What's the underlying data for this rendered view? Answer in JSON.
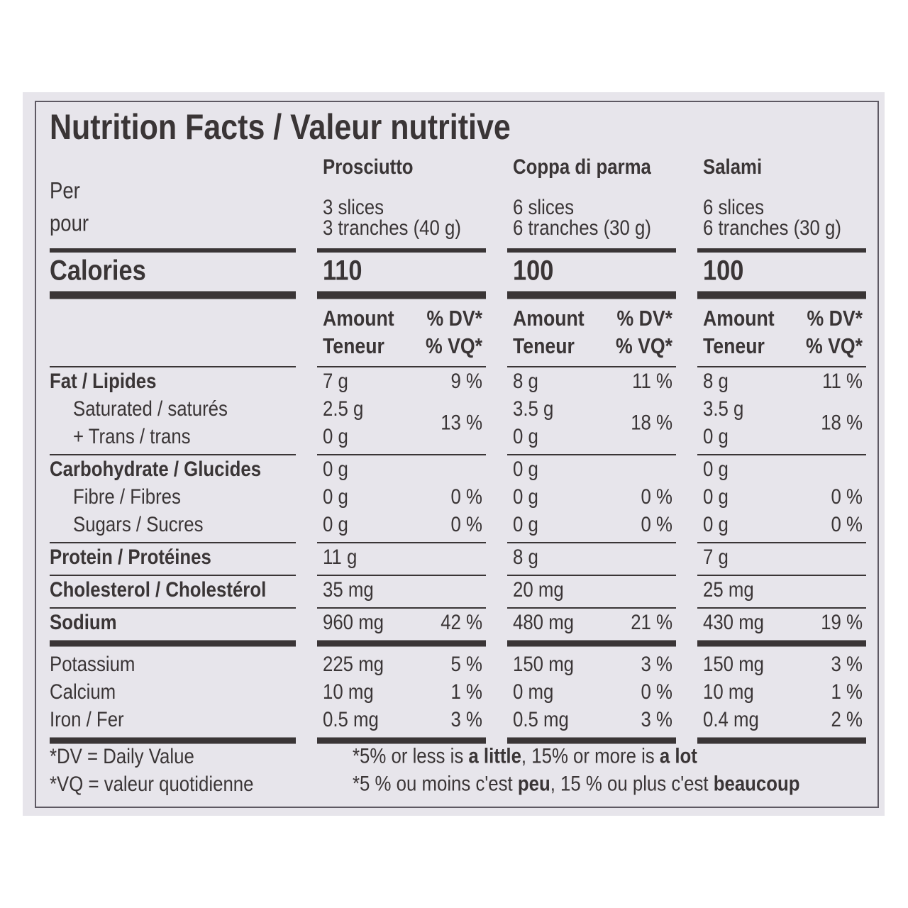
{
  "title": "Nutrition Facts / Valeur nutritive",
  "per": [
    "Per",
    "pour"
  ],
  "calories_label": "Calories",
  "products": [
    {
      "name": "Prosciutto",
      "serving": [
        "3 slices",
        "3 tranches (40 g)"
      ],
      "calories": "110"
    },
    {
      "name": "Coppa di parma",
      "serving": [
        "6 slices",
        "6 tranches (30 g)"
      ],
      "calories": "100"
    },
    {
      "name": "Salami",
      "serving": [
        "6 slices",
        "6 tranches (30 g)"
      ],
      "calories": "100"
    }
  ],
  "amount_header": [
    "Amount",
    "Teneur"
  ],
  "dv_header": [
    "% DV*",
    "% VQ*"
  ],
  "sections": [
    {
      "rule": "thin",
      "rows": [
        {
          "label": [
            "Fat / Lipides"
          ],
          "bold": true,
          "amounts": [
            [
              "7 g"
            ],
            [
              "8 g"
            ],
            [
              "8 g"
            ]
          ],
          "dv": [
            "9 %",
            "11 %",
            "11 %"
          ]
        },
        {
          "label": [
            "Saturated / saturés",
            "+ Trans / trans"
          ],
          "indent": true,
          "amounts": [
            [
              "2.5 g",
              "0 g"
            ],
            [
              "3.5 g",
              "0 g"
            ],
            [
              "3.5 g",
              "0 g"
            ]
          ],
          "dv": [
            "13 %",
            "18 %",
            "18 %"
          ]
        }
      ]
    },
    {
      "rule": "thin",
      "rows": [
        {
          "label": [
            "Carbohydrate / Glucides"
          ],
          "bold": true,
          "amounts": [
            [
              "0 g"
            ],
            [
              "0 g"
            ],
            [
              "0 g"
            ]
          ]
        },
        {
          "label": [
            "Fibre / Fibres"
          ],
          "indent": true,
          "amounts": [
            [
              "0 g"
            ],
            [
              "0 g"
            ],
            [
              "0 g"
            ]
          ],
          "dv": [
            "0 %",
            "0 %",
            "0 %"
          ]
        },
        {
          "label": [
            "Sugars / Sucres"
          ],
          "indent": true,
          "amounts": [
            [
              "0 g"
            ],
            [
              "0 g"
            ],
            [
              "0 g"
            ]
          ],
          "dv": [
            "0 %",
            "0 %",
            "0 %"
          ]
        }
      ]
    },
    {
      "rule": "thin",
      "rows": [
        {
          "label": [
            "Protein / Protéines"
          ],
          "bold": true,
          "amounts": [
            [
              "11 g"
            ],
            [
              "8 g"
            ],
            [
              "7 g"
            ]
          ]
        }
      ]
    },
    {
      "rule": "thin",
      "rows": [
        {
          "label": [
            "Cholesterol / Cholestérol"
          ],
          "bold": true,
          "amounts": [
            [
              "35 mg"
            ],
            [
              "20 mg"
            ],
            [
              "25 mg"
            ]
          ]
        }
      ]
    },
    {
      "rule": "thick",
      "rows": [
        {
          "label": [
            "Sodium"
          ],
          "bold": true,
          "amounts": [
            [
              "960 mg"
            ],
            [
              "480 mg"
            ],
            [
              "430 mg"
            ]
          ],
          "dv": [
            "42 %",
            "21 %",
            "19 %"
          ]
        }
      ]
    },
    {
      "rule": "thick",
      "rows": [
        {
          "label": [
            "Potassium"
          ],
          "amounts": [
            [
              "225 mg"
            ],
            [
              "150 mg"
            ],
            [
              "150 mg"
            ]
          ],
          "dv": [
            "5 %",
            "3 %",
            "3 %"
          ]
        },
        {
          "label": [
            "Calcium"
          ],
          "amounts": [
            [
              "10 mg"
            ],
            [
              "0 mg"
            ],
            [
              "10 mg"
            ]
          ],
          "dv": [
            "1 %",
            "0 %",
            "1 %"
          ]
        },
        {
          "label": [
            "Iron / Fer"
          ],
          "amounts": [
            [
              "0.5 mg"
            ],
            [
              "0.5 mg"
            ],
            [
              "0.4 mg"
            ]
          ],
          "dv": [
            "3 %",
            "3 %",
            "2 %"
          ]
        }
      ]
    }
  ],
  "footnotes": {
    "left": [
      "*DV = Daily Value",
      "*VQ = valeur quotidienne"
    ],
    "right": [
      [
        {
          "text": "*5% or less is "
        },
        {
          "text": "a little",
          "bold": true
        },
        {
          "text": ", 15% or more is "
        },
        {
          "text": "a lot",
          "bold": true
        }
      ],
      [
        {
          "text": "*5 % ou moins c'est "
        },
        {
          "text": "peu",
          "bold": true
        },
        {
          "text": ", 15 % ou plus c'est "
        },
        {
          "text": "beaucoup",
          "bold": true
        }
      ]
    ]
  }
}
